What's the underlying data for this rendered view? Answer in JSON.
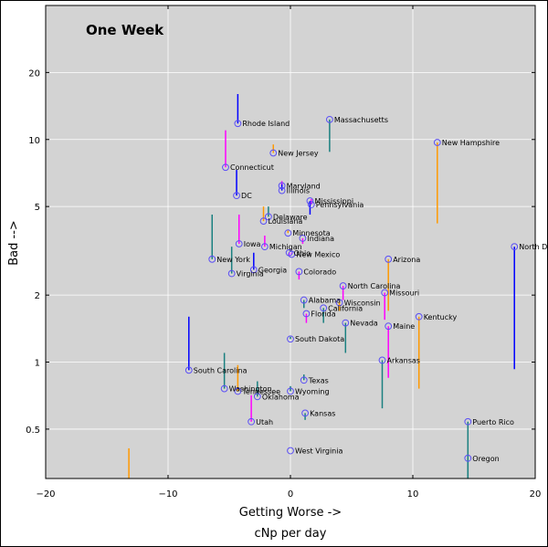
{
  "chart_data": {
    "type": "scatter",
    "title": "One Week",
    "xlabel": "Getting Worse ->",
    "sublabel": "cNp per day",
    "ylabel": "Bad -->",
    "xlim": [
      -20,
      20
    ],
    "ylim": [
      0.3,
      40
    ],
    "yscale": "log",
    "grid": true,
    "background": "#d3d3d3",
    "marker_color": "#5b4ff5",
    "x_ticks": [
      -20,
      -10,
      0,
      10,
      20
    ],
    "x_tick_labels": [
      "−20",
      "−10",
      "0",
      "10",
      "20"
    ],
    "y_ticks": [
      0.5,
      1,
      2,
      5,
      10,
      20
    ],
    "y_tick_labels": [
      "0.5",
      "1",
      "2",
      "5",
      "10",
      "20"
    ],
    "points": [
      {
        "name": "Rhode Island",
        "x": -4.3,
        "y": 11.8,
        "tail": 16.0,
        "color": "#0000ff"
      },
      {
        "name": "Massachusetts",
        "x": 3.2,
        "y": 12.3,
        "tail": 8.8,
        "color": "#1a8080"
      },
      {
        "name": "New Hampshire",
        "x": 12.0,
        "y": 9.7,
        "tail": 4.2,
        "color": "#ff9900"
      },
      {
        "name": "Connecticut",
        "x": -5.3,
        "y": 7.5,
        "tail": 11.0,
        "color": "#ff00ff"
      },
      {
        "name": "New Jersey",
        "x": -1.4,
        "y": 8.7,
        "tail": 9.5,
        "color": "#ff9900"
      },
      {
        "name": "DC",
        "x": -4.4,
        "y": 5.6,
        "tail": 7.3,
        "color": "#0000ff"
      },
      {
        "name": "Maryland",
        "x": -0.7,
        "y": 6.2,
        "tail": 6.5,
        "color": "#ff00ff"
      },
      {
        "name": "Illinois",
        "x": -0.7,
        "y": 5.9,
        "tail": 6.3,
        "color": "#0000ff"
      },
      {
        "name": "Mississippi",
        "x": 1.6,
        "y": 5.3,
        "tail": 4.6,
        "color": "#0000ff"
      },
      {
        "name": "Pennsylvania",
        "x": 1.7,
        "y": 5.1,
        "tail": 5.4,
        "color": "#ff00ff"
      },
      {
        "name": "Delaware",
        "x": -1.8,
        "y": 4.5,
        "tail": 5.0,
        "color": "#1a8080"
      },
      {
        "name": "Louisiana",
        "x": -2.2,
        "y": 4.3,
        "tail": 5.0,
        "color": "#ff9900"
      },
      {
        "name": "Minnesota",
        "x": -0.2,
        "y": 3.8,
        "tail": 3.9,
        "color": "#ff9900"
      },
      {
        "name": "Indiana",
        "x": 1.0,
        "y": 3.6,
        "tail": 3.4,
        "color": "#ff00ff"
      },
      {
        "name": "Iowa",
        "x": -4.2,
        "y": 3.4,
        "tail": 4.6,
        "color": "#ff00ff"
      },
      {
        "name": "Michigan",
        "x": -2.1,
        "y": 3.3,
        "tail": 3.7,
        "color": "#ff00ff"
      },
      {
        "name": "Ohio",
        "x": -0.1,
        "y": 3.1,
        "tail": 3.0,
        "color": "#ff00ff"
      },
      {
        "name": "New Mexico",
        "x": 0.1,
        "y": 3.05,
        "tail": 3.1,
        "color": "#ff00ff"
      },
      {
        "name": "New York",
        "x": -6.4,
        "y": 2.9,
        "tail": 4.6,
        "color": "#1a8080"
      },
      {
        "name": "Arizona",
        "x": 8.0,
        "y": 2.9,
        "tail": 1.7,
        "color": "#ff9900"
      },
      {
        "name": "North Dakota",
        "x": 18.3,
        "y": 3.3,
        "tail": 0.93,
        "color": "#0000ff"
      },
      {
        "name": "Georgia",
        "x": -3.0,
        "y": 2.6,
        "tail": 3.1,
        "color": "#0000ff"
      },
      {
        "name": "Virginia",
        "x": -4.8,
        "y": 2.5,
        "tail": 3.3,
        "color": "#1a8080"
      },
      {
        "name": "Colorado",
        "x": 0.7,
        "y": 2.55,
        "tail": 2.35,
        "color": "#ff00ff"
      },
      {
        "name": "North Carolina",
        "x": 4.3,
        "y": 2.2,
        "tail": 1.9,
        "color": "#ff00ff"
      },
      {
        "name": "Missouri",
        "x": 7.7,
        "y": 2.05,
        "tail": 1.55,
        "color": "#ff00ff"
      },
      {
        "name": "Alabama",
        "x": 1.1,
        "y": 1.9,
        "tail": 1.75,
        "color": "#1a8080"
      },
      {
        "name": "Wisconsin",
        "x": 4.0,
        "y": 1.85,
        "tail": 1.7,
        "color": "#ff9900"
      },
      {
        "name": "California",
        "x": 2.7,
        "y": 1.75,
        "tail": 1.5,
        "color": "#1a8080"
      },
      {
        "name": "Florida",
        "x": 1.3,
        "y": 1.65,
        "tail": 1.5,
        "color": "#ff00ff"
      },
      {
        "name": "Kentucky",
        "x": 10.5,
        "y": 1.6,
        "tail": 0.76,
        "color": "#ff9900"
      },
      {
        "name": "Nevada",
        "x": 4.5,
        "y": 1.5,
        "tail": 1.1,
        "color": "#1a8080"
      },
      {
        "name": "Maine",
        "x": 8.0,
        "y": 1.45,
        "tail": 0.85,
        "color": "#ff00ff"
      },
      {
        "name": "South Dakota",
        "x": 0.0,
        "y": 1.27,
        "tail": 1.3,
        "color": "#1a8080"
      },
      {
        "name": "Arkansas",
        "x": 7.5,
        "y": 1.02,
        "tail": 0.62,
        "color": "#1a8080"
      },
      {
        "name": "South Carolina",
        "x": -8.3,
        "y": 0.92,
        "tail": 1.6,
        "color": "#0000ff"
      },
      {
        "name": "Texas",
        "x": 1.1,
        "y": 0.83,
        "tail": 0.88,
        "color": "#1a8080"
      },
      {
        "name": "Washington",
        "x": -5.4,
        "y": 0.76,
        "tail": 1.1,
        "color": "#1a8080"
      },
      {
        "name": "Tennessee",
        "x": -4.3,
        "y": 0.74,
        "tail": 0.97,
        "color": "#ff9900"
      },
      {
        "name": "Wyoming",
        "x": 0.0,
        "y": 0.74,
        "tail": 0.78,
        "color": "#1a8080"
      },
      {
        "name": "Oklahoma",
        "x": -2.7,
        "y": 0.7,
        "tail": 0.82,
        "color": "#1a8080"
      },
      {
        "name": "Kansas",
        "x": 1.2,
        "y": 0.59,
        "tail": 0.55,
        "color": "#1a8080"
      },
      {
        "name": "Utah",
        "x": -3.2,
        "y": 0.54,
        "tail": 0.71,
        "color": "#ff00ff"
      },
      {
        "name": "Puerto Rico",
        "x": 14.5,
        "y": 0.54,
        "tail": 0.3,
        "color": "#1a8080"
      },
      {
        "name": "West Virginia",
        "x": 0.0,
        "y": 0.4,
        "tail": 0.4,
        "color": "#1a8080"
      },
      {
        "name": "Oregon",
        "x": 14.5,
        "y": 0.37,
        "tail": 0.3,
        "color": "#1a8080"
      },
      {
        "name": "",
        "x": -13.2,
        "y": 0.3,
        "tail": 0.41,
        "color": "#ff9900"
      }
    ]
  }
}
